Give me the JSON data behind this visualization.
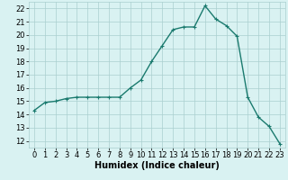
{
  "title": "",
  "xlabel": "Humidex (Indice chaleur)",
  "ylabel": "",
  "x": [
    0,
    1,
    2,
    3,
    4,
    5,
    6,
    7,
    8,
    9,
    10,
    11,
    12,
    13,
    14,
    15,
    16,
    17,
    18,
    19,
    20,
    21,
    22,
    23
  ],
  "y": [
    14.3,
    14.9,
    15.0,
    15.2,
    15.3,
    15.3,
    15.3,
    15.3,
    15.3,
    16.0,
    16.6,
    18.0,
    19.2,
    20.4,
    20.6,
    20.6,
    22.2,
    21.2,
    20.7,
    19.9,
    15.3,
    13.8,
    13.1,
    11.8
  ],
  "line_color": "#1a7a6e",
  "marker": "+",
  "marker_size": 3,
  "bg_color": "#d9f2f2",
  "grid_color": "#aacfcf",
  "ylim": [
    11.5,
    22.5
  ],
  "xlim": [
    -0.5,
    23.5
  ],
  "yticks": [
    12,
    13,
    14,
    15,
    16,
    17,
    18,
    19,
    20,
    21,
    22
  ],
  "xticks": [
    0,
    1,
    2,
    3,
    4,
    5,
    6,
    7,
    8,
    9,
    10,
    11,
    12,
    13,
    14,
    15,
    16,
    17,
    18,
    19,
    20,
    21,
    22,
    23
  ],
  "xlabel_fontsize": 7,
  "tick_fontsize": 6,
  "line_width": 1.0,
  "marker_edge_width": 0.8
}
